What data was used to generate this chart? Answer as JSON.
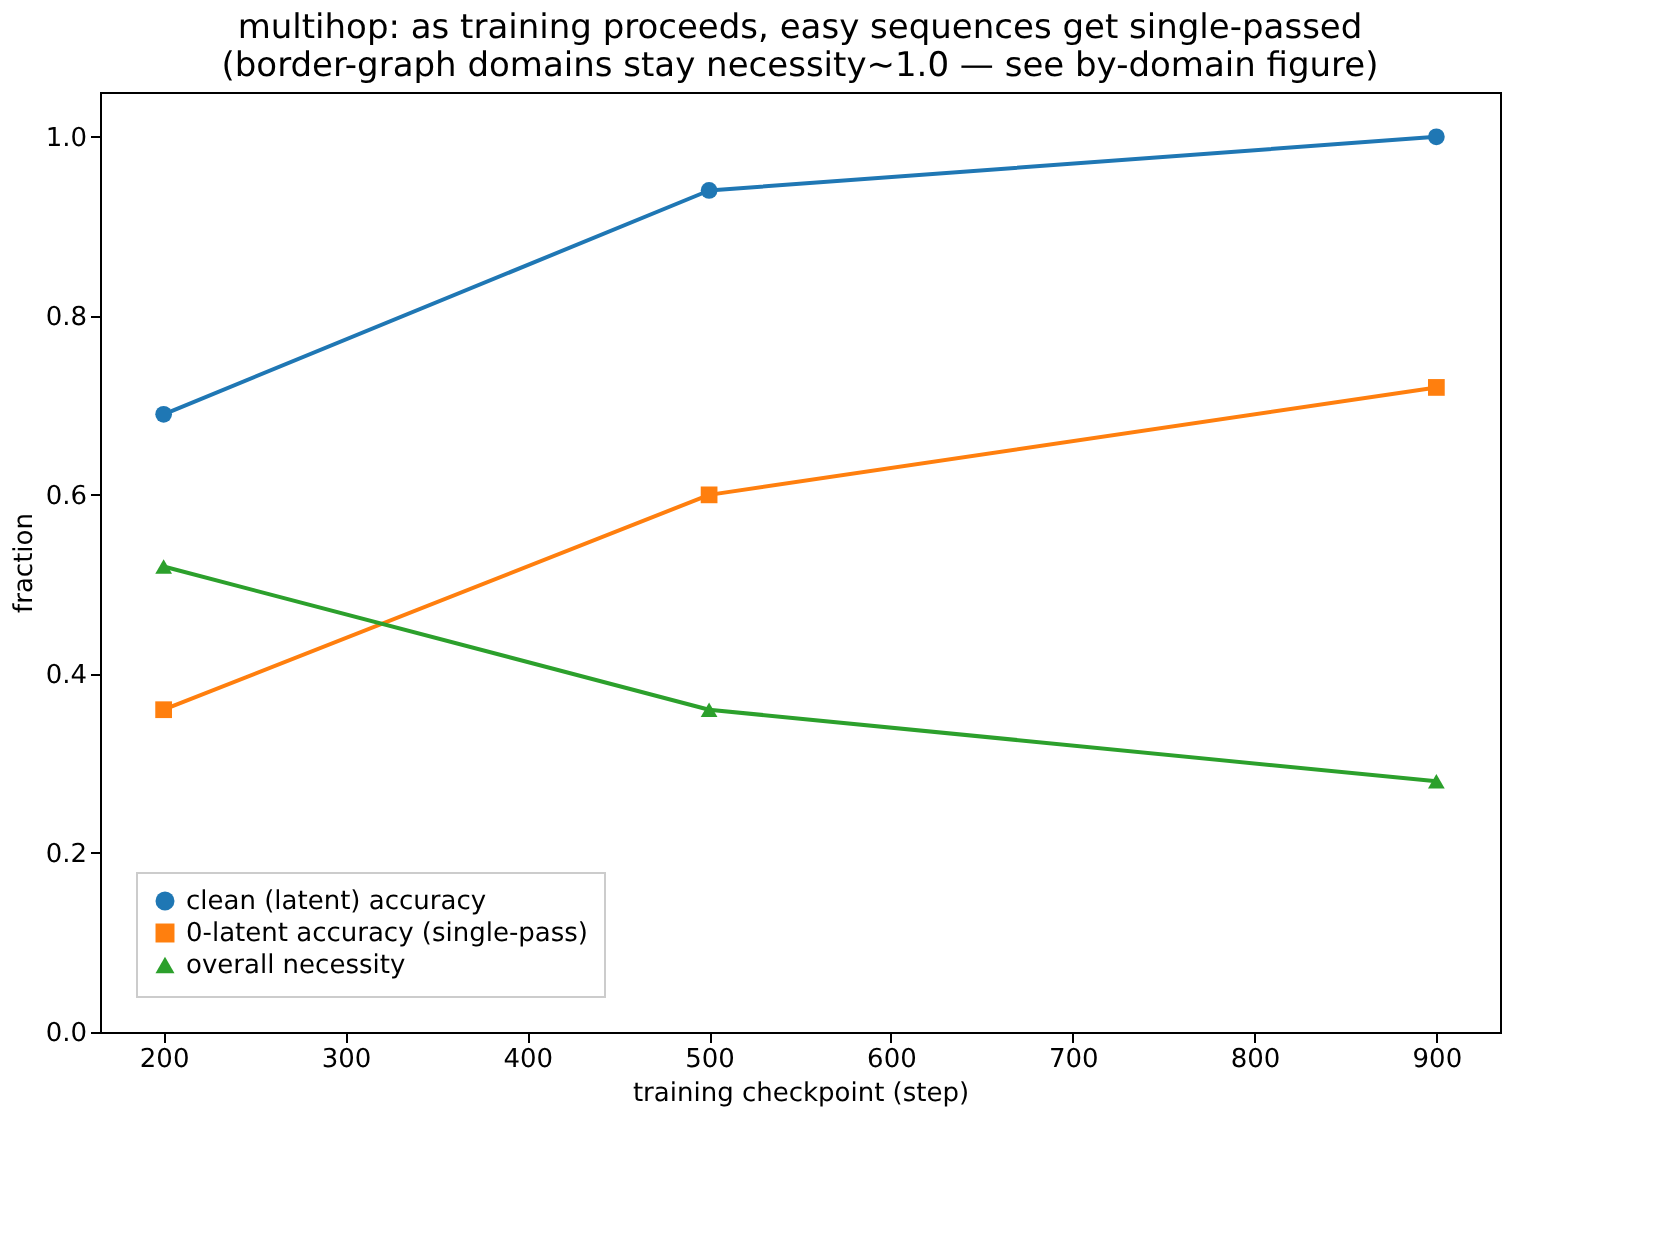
{
  "chart_data": {
    "type": "line",
    "title": "multihop: as training proceeds, easy sequences get single-passed\n(border-graph domains stay necessity~1.0 — see by-domain figure)",
    "xlabel": "training checkpoint (step)",
    "ylabel": "fraction",
    "x": [
      200,
      500,
      900
    ],
    "series": [
      {
        "name": "clean (latent) accuracy",
        "color": "#1f77b4",
        "marker": "circle",
        "values": [
          0.69,
          0.94,
          1.0
        ]
      },
      {
        "name": "0-latent accuracy (single-pass)",
        "color": "#ff7f0e",
        "marker": "square",
        "values": [
          0.36,
          0.6,
          0.72
        ]
      },
      {
        "name": "overall necessity",
        "color": "#2ca02c",
        "marker": "triangle",
        "values": [
          0.52,
          0.36,
          0.28
        ]
      }
    ],
    "xlim": [
      165,
      935
    ],
    "xticks": [
      200,
      300,
      400,
      500,
      600,
      700,
      800,
      900
    ],
    "ylim": [
      0,
      1.05
    ],
    "yticks": [
      {
        "value": 0,
        "label": "0.0"
      },
      0.2,
      0.4,
      0.6,
      0.8,
      {
        "value": 1,
        "label": "1.0"
      }
    ],
    "grid": false,
    "legend": "bottom left",
    "line_style": "solid"
  }
}
